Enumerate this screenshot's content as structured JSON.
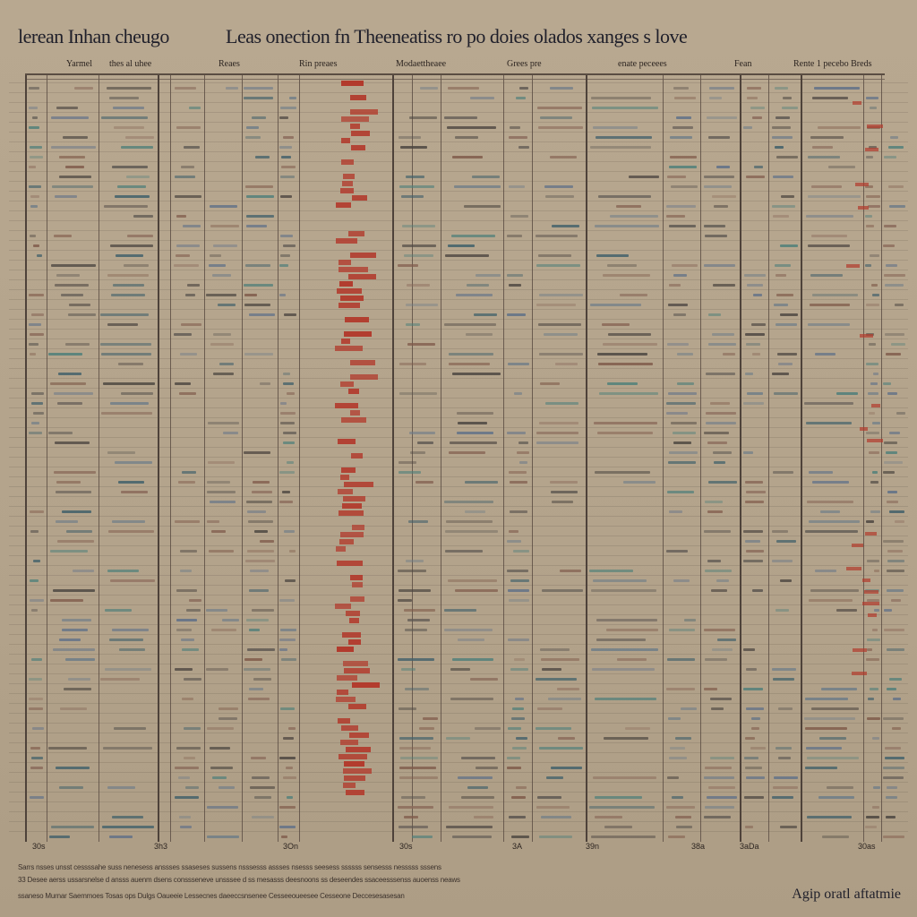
{
  "document": {
    "title_left": "lerean Inhan cheugo",
    "title_main": "Leas onection fn Theeneatiss ro po doies olados xanges s love",
    "signature": "Agip oratl aftatmie"
  },
  "columns": [
    {
      "label": "Yarmel"
    },
    {
      "label": "thes al uhee"
    },
    {
      "label": "Reaes"
    },
    {
      "label": "Rin preaes"
    },
    {
      "label": "Modaettheaee"
    },
    {
      "label": "Grees pre"
    },
    {
      "label": "enate peceees"
    },
    {
      "label": "Fean"
    },
    {
      "label": "Rente 1 pecebo Breds"
    }
  ],
  "footer_numbers": [
    "30s",
    "3h3",
    "3On",
    "30s",
    "3A",
    "39n",
    "38a",
    "3aDa",
    "30as"
  ],
  "footer_text": [
    "Sarrs nsses unsst cessssahe suss nenesess anssses ssaseses sussens nsssesss assses nsesss seesess ssssss sensesss nesssss sssens",
    "33 Desee aerss ussarsnelse d ansss auenm dsens conssseneve unsssee d ss mesasss deesnoons ss deseendes ssaceesssenss auoenss neaws",
    "ssaneso  Murnar  Saemmoes  Tosas ops  Dulgs  Oaueeie  Lessecnes  daeeccsnsenee  Cesseeoueesee  Cesseone  Deccesesasesan"
  ]
}
